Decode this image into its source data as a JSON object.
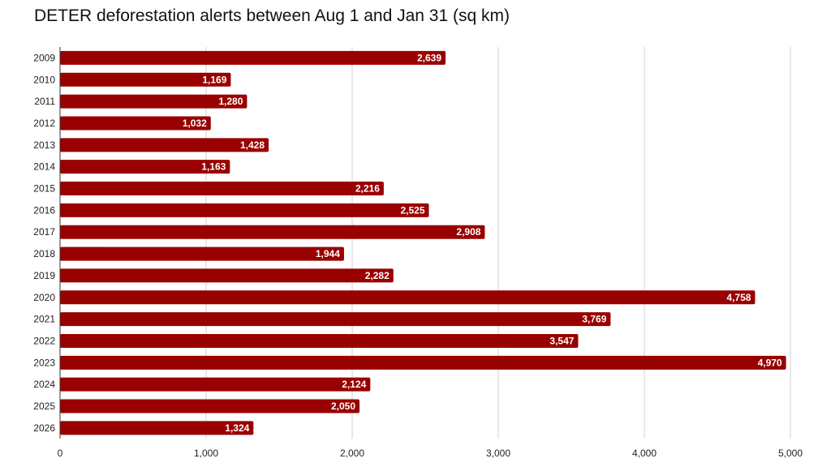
{
  "chart_data": {
    "type": "bar",
    "orientation": "horizontal",
    "title": "DETER deforestation alerts between Aug 1 and Jan 31 (sq km)",
    "xlabel": "",
    "ylabel": "",
    "categories": [
      "2009",
      "2010",
      "2011",
      "2012",
      "2013",
      "2014",
      "2015",
      "2016",
      "2017",
      "2018",
      "2019",
      "2020",
      "2021",
      "2022",
      "2023",
      "2024",
      "2025",
      "2026"
    ],
    "values": [
      2639,
      1169,
      1280,
      1032,
      1428,
      1163,
      2216,
      2525,
      2908,
      1944,
      2282,
      4758,
      3769,
      3547,
      4970,
      2124,
      2050,
      1324
    ],
    "data_labels": [
      "2,639",
      "1,169",
      "1,280",
      "1,032",
      "1,428",
      "1,163",
      "2,216",
      "2,525",
      "2,908",
      "1,944",
      "2,282",
      "4,758",
      "3,769",
      "3,547",
      "4,970",
      "2,124",
      "2,050",
      "1,324"
    ],
    "xlim": [
      0,
      5000
    ],
    "x_ticks": [
      0,
      1000,
      2000,
      3000,
      4000,
      5000
    ],
    "x_tick_labels": [
      "0",
      "1,000",
      "2,000",
      "3,000",
      "4,000",
      "5,000"
    ],
    "grid": "vertical",
    "legend": "none",
    "bar_color": "#990000"
  }
}
